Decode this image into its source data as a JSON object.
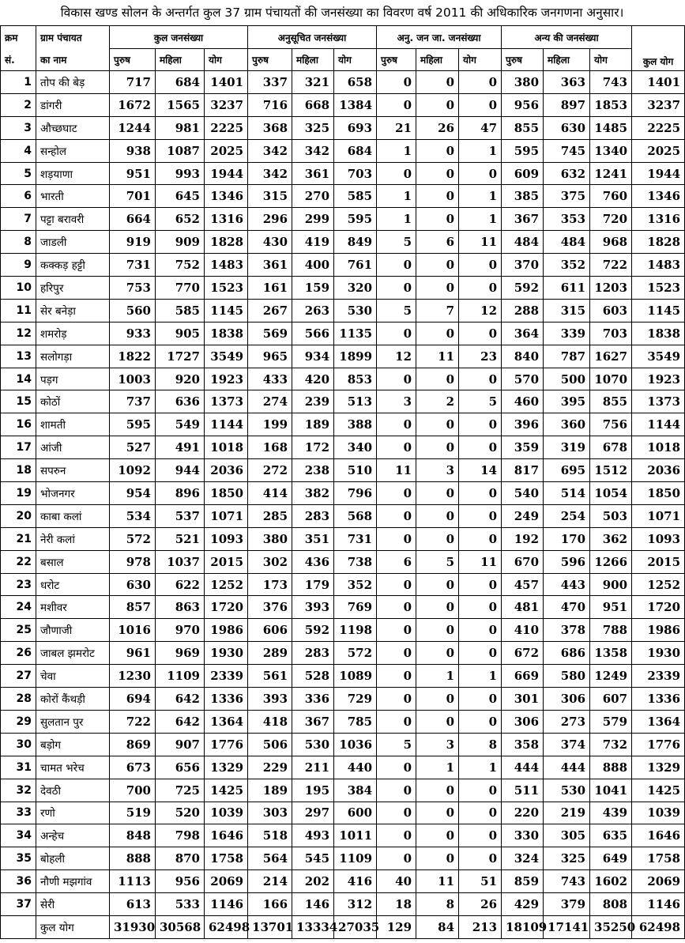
{
  "title": "विकास खण्ड सोलन के अन्तर्गत कुल 37 ग्राम पंचायतों की जनसंख्या का विवरण वर्ष 2011 की अधिकारिक जनगणना अनुसार।",
  "headers": {
    "kram": "क्रम",
    "sankhya": "सं.",
    "gram_panchayat": "ग्राम पंचायत",
    "ka_naam": "का नाम",
    "groups": [
      "कुल जनसंख्या",
      "अनुसूचित जनसंख्या",
      "अनु. जन जा. जनसंख्या",
      "अन्य की जनसंख्या"
    ],
    "sub": [
      "पुरुष",
      "महिला",
      "योग"
    ],
    "kul_yog": "कुल योग"
  },
  "rows": [
    [
      "1",
      "तोप की बेड़",
      "717",
      "684",
      "1401",
      "337",
      "321",
      "658",
      "0",
      "0",
      "0",
      "380",
      "363",
      "743",
      "1401"
    ],
    [
      "2",
      "डांगरी",
      "1672",
      "1565",
      "3237",
      "716",
      "668",
      "1384",
      "0",
      "0",
      "0",
      "956",
      "897",
      "1853",
      "3237"
    ],
    [
      "3",
      "औच्छघाट",
      "1244",
      "981",
      "2225",
      "368",
      "325",
      "693",
      "21",
      "26",
      "47",
      "855",
      "630",
      "1485",
      "2225"
    ],
    [
      "4",
      "सन्होल",
      "938",
      "1087",
      "2025",
      "342",
      "342",
      "684",
      "1",
      "0",
      "1",
      "595",
      "745",
      "1340",
      "2025"
    ],
    [
      "5",
      "शड़याणा",
      "951",
      "993",
      "1944",
      "342",
      "361",
      "703",
      "0",
      "0",
      "0",
      "609",
      "632",
      "1241",
      "1944"
    ],
    [
      "6",
      "भारती",
      "701",
      "645",
      "1346",
      "315",
      "270",
      "585",
      "1",
      "0",
      "1",
      "385",
      "375",
      "760",
      "1346"
    ],
    [
      "7",
      "पट्टा बरावरी",
      "664",
      "652",
      "1316",
      "296",
      "299",
      "595",
      "1",
      "0",
      "1",
      "367",
      "353",
      "720",
      "1316"
    ],
    [
      "8",
      "जाडली",
      "919",
      "909",
      "1828",
      "430",
      "419",
      "849",
      "5",
      "6",
      "11",
      "484",
      "484",
      "968",
      "1828"
    ],
    [
      "9",
      "कक्कड़ हट्टी",
      "731",
      "752",
      "1483",
      "361",
      "400",
      "761",
      "0",
      "0",
      "0",
      "370",
      "352",
      "722",
      "1483"
    ],
    [
      "10",
      "हरिपुर",
      "753",
      "770",
      "1523",
      "161",
      "159",
      "320",
      "0",
      "0",
      "0",
      "592",
      "611",
      "1203",
      "1523"
    ],
    [
      "11",
      "सेर बनेड़ा",
      "560",
      "585",
      "1145",
      "267",
      "263",
      "530",
      "5",
      "7",
      "12",
      "288",
      "315",
      "603",
      "1145"
    ],
    [
      "12",
      "शमरोड़",
      "933",
      "905",
      "1838",
      "569",
      "566",
      "1135",
      "0",
      "0",
      "0",
      "364",
      "339",
      "703",
      "1838"
    ],
    [
      "13",
      "सलोगड़ा",
      "1822",
      "1727",
      "3549",
      "965",
      "934",
      "1899",
      "12",
      "11",
      "23",
      "840",
      "787",
      "1627",
      "3549"
    ],
    [
      "14",
      "पड़ग",
      "1003",
      "920",
      "1923",
      "433",
      "420",
      "853",
      "0",
      "0",
      "0",
      "570",
      "500",
      "1070",
      "1923"
    ],
    [
      "15",
      "कोठों",
      "737",
      "636",
      "1373",
      "274",
      "239",
      "513",
      "3",
      "2",
      "5",
      "460",
      "395",
      "855",
      "1373"
    ],
    [
      "16",
      "शामती",
      "595",
      "549",
      "1144",
      "199",
      "189",
      "388",
      "0",
      "0",
      "0",
      "396",
      "360",
      "756",
      "1144"
    ],
    [
      "17",
      "आंजी",
      "527",
      "491",
      "1018",
      "168",
      "172",
      "340",
      "0",
      "0",
      "0",
      "359",
      "319",
      "678",
      "1018"
    ],
    [
      "18",
      "सपरुन",
      "1092",
      "944",
      "2036",
      "272",
      "238",
      "510",
      "11",
      "3",
      "14",
      "817",
      "695",
      "1512",
      "2036"
    ],
    [
      "19",
      "भोजनगर",
      "954",
      "896",
      "1850",
      "414",
      "382",
      "796",
      "0",
      "0",
      "0",
      "540",
      "514",
      "1054",
      "1850"
    ],
    [
      "20",
      "काबा कलां",
      "534",
      "537",
      "1071",
      "285",
      "283",
      "568",
      "0",
      "0",
      "0",
      "249",
      "254",
      "503",
      "1071"
    ],
    [
      "21",
      "नेरी कलां",
      "572",
      "521",
      "1093",
      "380",
      "351",
      "731",
      "0",
      "0",
      "0",
      "192",
      "170",
      "362",
      "1093"
    ],
    [
      "22",
      "बसाल",
      "978",
      "1037",
      "2015",
      "302",
      "436",
      "738",
      "6",
      "5",
      "11",
      "670",
      "596",
      "1266",
      "2015"
    ],
    [
      "23",
      "धरोट",
      "630",
      "622",
      "1252",
      "173",
      "179",
      "352",
      "0",
      "0",
      "0",
      "457",
      "443",
      "900",
      "1252"
    ],
    [
      "24",
      "मशीवर",
      "857",
      "863",
      "1720",
      "376",
      "393",
      "769",
      "0",
      "0",
      "0",
      "481",
      "470",
      "951",
      "1720"
    ],
    [
      "25",
      "जौणाजी",
      "1016",
      "970",
      "1986",
      "606",
      "592",
      "1198",
      "0",
      "0",
      "0",
      "410",
      "378",
      "788",
      "1986"
    ],
    [
      "26",
      "जाबल झमरोट",
      "961",
      "969",
      "1930",
      "289",
      "283",
      "572",
      "0",
      "0",
      "0",
      "672",
      "686",
      "1358",
      "1930"
    ],
    [
      "27",
      "चेवा",
      "1230",
      "1109",
      "2339",
      "561",
      "528",
      "1089",
      "0",
      "1",
      "1",
      "669",
      "580",
      "1249",
      "2339"
    ],
    [
      "28",
      "कोरों कैंथड़ी",
      "694",
      "642",
      "1336",
      "393",
      "336",
      "729",
      "0",
      "0",
      "0",
      "301",
      "306",
      "607",
      "1336"
    ],
    [
      "29",
      "सुलतान पुर",
      "722",
      "642",
      "1364",
      "418",
      "367",
      "785",
      "0",
      "0",
      "0",
      "306",
      "273",
      "579",
      "1364"
    ],
    [
      "30",
      "बड़ोग",
      "869",
      "907",
      "1776",
      "506",
      "530",
      "1036",
      "5",
      "3",
      "8",
      "358",
      "374",
      "732",
      "1776"
    ],
    [
      "31",
      "चामत भरेच",
      "673",
      "656",
      "1329",
      "229",
      "211",
      "440",
      "0",
      "1",
      "1",
      "444",
      "444",
      "888",
      "1329"
    ],
    [
      "32",
      "देवठी",
      "700",
      "725",
      "1425",
      "189",
      "195",
      "384",
      "0",
      "0",
      "0",
      "511",
      "530",
      "1041",
      "1425"
    ],
    [
      "33",
      "रणो",
      "519",
      "520",
      "1039",
      "303",
      "297",
      "600",
      "0",
      "0",
      "0",
      "220",
      "219",
      "439",
      "1039"
    ],
    [
      "34",
      "अन्हेच",
      "848",
      "798",
      "1646",
      "518",
      "493",
      "1011",
      "0",
      "0",
      "0",
      "330",
      "305",
      "635",
      "1646"
    ],
    [
      "35",
      "बोहली",
      "888",
      "870",
      "1758",
      "564",
      "545",
      "1109",
      "0",
      "0",
      "0",
      "324",
      "325",
      "649",
      "1758"
    ],
    [
      "36",
      "नौणी मझगांव",
      "1113",
      "956",
      "2069",
      "214",
      "202",
      "416",
      "40",
      "11",
      "51",
      "859",
      "743",
      "1602",
      "2069"
    ],
    [
      "37",
      "सेरी",
      "613",
      "533",
      "1146",
      "166",
      "146",
      "312",
      "18",
      "8",
      "26",
      "429",
      "379",
      "808",
      "1146"
    ]
  ],
  "total": [
    "कुल योग",
    "31930",
    "30568",
    "62498",
    "13701",
    "13334",
    "27035",
    "129",
    "84",
    "213",
    "18109",
    "17141",
    "35250",
    "62498"
  ]
}
